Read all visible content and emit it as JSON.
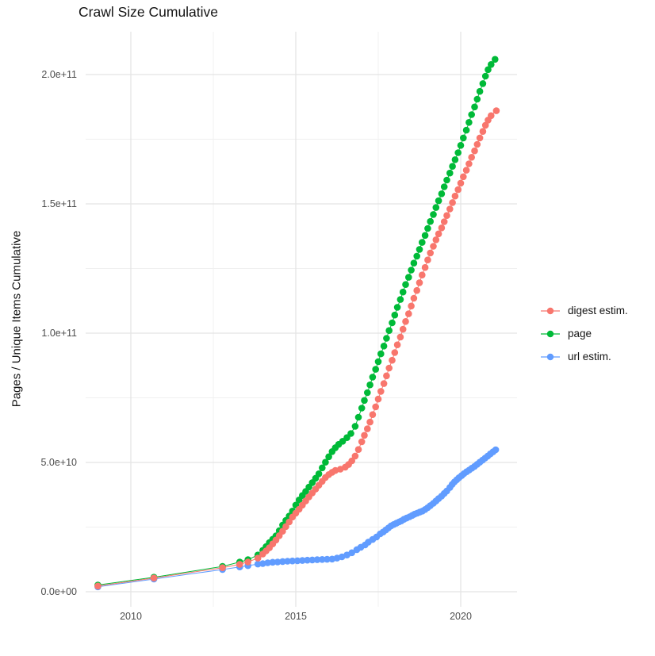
{
  "title": "Crawl Size Cumulative",
  "y_axis": {
    "label": "Pages / Unique Items Cumulative",
    "ticks": [
      {
        "label": "0.0e+00",
        "value_e9": 0
      },
      {
        "label": "5.0e+10",
        "value_e9": 50
      },
      {
        "label": "1.0e+11",
        "value_e9": 100
      },
      {
        "label": "1.5e+11",
        "value_e9": 150
      },
      {
        "label": "2.0e+11",
        "value_e9": 200
      }
    ],
    "minor_e9": [
      25,
      75,
      125,
      175
    ]
  },
  "x_axis": {
    "ticks": [
      {
        "label": "2010",
        "year": 2010
      },
      {
        "label": "2015",
        "year": 2015
      },
      {
        "label": "2020",
        "year": 2020
      }
    ],
    "minor_years": [
      2012.5,
      2017.5
    ]
  },
  "legend": [
    {
      "label": "digest estim.",
      "color": "#F8766D"
    },
    {
      "label": "page",
      "color": "#00BA38"
    },
    {
      "label": "url estim.",
      "color": "#619CFF"
    }
  ],
  "colors": {
    "major_grid": "#E4E4E4",
    "minor_grid": "#F0F0F0",
    "axis_text": "#4d4d4d"
  },
  "chart_data": {
    "type": "line",
    "title": "Crawl Size Cumulative",
    "xlabel": "",
    "ylabel": "Pages / Unique Items Cumulative",
    "x_unit": "year (decimal)",
    "y_unit": "billions of pages / unique items (1e9)",
    "xlim": [
      2008.6,
      2021.7
    ],
    "ylim_e9": [
      -12,
      216
    ],
    "grid": true,
    "legend_position": "right",
    "marker": "point",
    "series": [
      {
        "name": "digest estim.",
        "color": "#F8766D",
        "points": [
          [
            2009.0,
            2.2
          ],
          [
            2010.7,
            5.3
          ],
          [
            2012.78,
            9.3
          ],
          [
            2013.3,
            10.6
          ],
          [
            2013.55,
            11.5
          ],
          [
            2013.85,
            13
          ],
          [
            2014.0,
            14.6
          ],
          [
            2014.1,
            15.8
          ],
          [
            2014.2,
            17
          ],
          [
            2014.3,
            18.5
          ],
          [
            2014.4,
            20
          ],
          [
            2014.5,
            21.7
          ],
          [
            2014.6,
            23.4
          ],
          [
            2014.7,
            25.2
          ],
          [
            2014.8,
            27
          ],
          [
            2014.9,
            28.9
          ],
          [
            2015.0,
            30.4
          ],
          [
            2015.1,
            31.9
          ],
          [
            2015.2,
            33.5
          ],
          [
            2015.3,
            35.1
          ],
          [
            2015.4,
            36.7
          ],
          [
            2015.5,
            38.2
          ],
          [
            2015.6,
            39.7
          ],
          [
            2015.7,
            41.2
          ],
          [
            2015.8,
            42.7
          ],
          [
            2015.9,
            44.2
          ],
          [
            2016.0,
            45.3
          ],
          [
            2016.1,
            46.2
          ],
          [
            2016.2,
            46.9
          ],
          [
            2016.35,
            47.4
          ],
          [
            2016.5,
            48.2
          ],
          [
            2016.6,
            49.2
          ],
          [
            2016.7,
            50.6
          ],
          [
            2016.8,
            52.5
          ],
          [
            2016.9,
            55
          ],
          [
            2017.0,
            58
          ],
          [
            2017.08,
            60.5
          ],
          [
            2017.17,
            63
          ],
          [
            2017.25,
            65.6
          ],
          [
            2017.33,
            68.5
          ],
          [
            2017.42,
            71.5
          ],
          [
            2017.5,
            74.5
          ],
          [
            2017.58,
            77.5
          ],
          [
            2017.67,
            80.5
          ],
          [
            2017.75,
            83.5
          ],
          [
            2017.83,
            86.5
          ],
          [
            2017.92,
            89.5
          ],
          [
            2018.0,
            92.5
          ],
          [
            2018.08,
            95.5
          ],
          [
            2018.17,
            98.5
          ],
          [
            2018.25,
            101.5
          ],
          [
            2018.33,
            104.5
          ],
          [
            2018.42,
            107.5
          ],
          [
            2018.5,
            110.5
          ],
          [
            2018.58,
            113.5
          ],
          [
            2018.67,
            116.5
          ],
          [
            2018.75,
            119.5
          ],
          [
            2018.83,
            122.5
          ],
          [
            2018.92,
            125.4
          ],
          [
            2019.0,
            128.3
          ],
          [
            2019.08,
            131
          ],
          [
            2019.17,
            133.6
          ],
          [
            2019.25,
            136.1
          ],
          [
            2019.33,
            138.4
          ],
          [
            2019.42,
            140.7
          ],
          [
            2019.5,
            143.1
          ],
          [
            2019.58,
            145.5
          ],
          [
            2019.67,
            148
          ],
          [
            2019.75,
            150.5
          ],
          [
            2019.83,
            153
          ],
          [
            2019.92,
            155.5
          ],
          [
            2020.0,
            158
          ],
          [
            2020.08,
            160.5
          ],
          [
            2020.17,
            163
          ],
          [
            2020.25,
            165.5
          ],
          [
            2020.33,
            168
          ],
          [
            2020.42,
            170.5
          ],
          [
            2020.5,
            173
          ],
          [
            2020.58,
            175.5
          ],
          [
            2020.67,
            178
          ],
          [
            2020.75,
            180.4
          ],
          [
            2020.83,
            182.4
          ],
          [
            2020.92,
            184.1
          ],
          [
            2021.08,
            186
          ]
        ]
      },
      {
        "name": "page",
        "color": "#00BA38",
        "points": [
          [
            2009.0,
            2.6
          ],
          [
            2010.7,
            5.6
          ],
          [
            2012.78,
            9.8
          ],
          [
            2013.3,
            11.5
          ],
          [
            2013.55,
            12.4
          ],
          [
            2013.85,
            14.2
          ],
          [
            2014.0,
            16
          ],
          [
            2014.1,
            17.5
          ],
          [
            2014.2,
            19
          ],
          [
            2014.3,
            20.3
          ],
          [
            2014.4,
            21.6
          ],
          [
            2014.5,
            23.6
          ],
          [
            2014.6,
            25.8
          ],
          [
            2014.7,
            27.6
          ],
          [
            2014.8,
            29.3
          ],
          [
            2014.9,
            31.2
          ],
          [
            2015.0,
            33.5
          ],
          [
            2015.1,
            35.5
          ],
          [
            2015.2,
            37.2
          ],
          [
            2015.3,
            38.8
          ],
          [
            2015.4,
            40.5
          ],
          [
            2015.5,
            42.2
          ],
          [
            2015.6,
            43.9
          ],
          [
            2015.7,
            45.6
          ],
          [
            2015.8,
            47.9
          ],
          [
            2015.9,
            50.1
          ],
          [
            2016.0,
            52.2
          ],
          [
            2016.1,
            54.2
          ],
          [
            2016.2,
            55.7
          ],
          [
            2016.3,
            57
          ],
          [
            2016.42,
            58.2
          ],
          [
            2016.55,
            59.6
          ],
          [
            2016.67,
            61.2
          ],
          [
            2016.8,
            64
          ],
          [
            2016.9,
            67.5
          ],
          [
            2017.0,
            71
          ],
          [
            2017.08,
            74
          ],
          [
            2017.17,
            77
          ],
          [
            2017.25,
            80
          ],
          [
            2017.33,
            83
          ],
          [
            2017.42,
            86
          ],
          [
            2017.5,
            89
          ],
          [
            2017.58,
            92
          ],
          [
            2017.67,
            95
          ],
          [
            2017.75,
            98
          ],
          [
            2017.83,
            101
          ],
          [
            2017.92,
            104
          ],
          [
            2018.0,
            107
          ],
          [
            2018.08,
            110
          ],
          [
            2018.17,
            113
          ],
          [
            2018.25,
            115.9
          ],
          [
            2018.33,
            118.8
          ],
          [
            2018.42,
            121.6
          ],
          [
            2018.5,
            124.4
          ],
          [
            2018.58,
            127.1
          ],
          [
            2018.67,
            129.8
          ],
          [
            2018.75,
            132.4
          ],
          [
            2018.83,
            135.1
          ],
          [
            2018.92,
            137.8
          ],
          [
            2019.0,
            140.5
          ],
          [
            2019.08,
            143.2
          ],
          [
            2019.17,
            145.9
          ],
          [
            2019.25,
            148.6
          ],
          [
            2019.33,
            151.2
          ],
          [
            2019.42,
            153.9
          ],
          [
            2019.5,
            156.6
          ],
          [
            2019.58,
            159.2
          ],
          [
            2019.67,
            161.9
          ],
          [
            2019.75,
            164.5
          ],
          [
            2019.83,
            167.1
          ],
          [
            2019.92,
            169.8
          ],
          [
            2020.0,
            172.6
          ],
          [
            2020.08,
            175.5
          ],
          [
            2020.17,
            178.5
          ],
          [
            2020.25,
            181.5
          ],
          [
            2020.33,
            184.5
          ],
          [
            2020.42,
            187.5
          ],
          [
            2020.5,
            190.5
          ],
          [
            2020.58,
            193.5
          ],
          [
            2020.67,
            196.5
          ],
          [
            2020.75,
            199.4
          ],
          [
            2020.83,
            201.9
          ],
          [
            2020.92,
            203.9
          ],
          [
            2021.04,
            205.9
          ]
        ]
      },
      {
        "name": "url estim.",
        "color": "#619CFF",
        "points": [
          [
            2009.0,
            1.9
          ],
          [
            2010.7,
            4.9
          ],
          [
            2012.78,
            8.6
          ],
          [
            2013.3,
            9.6
          ],
          [
            2013.55,
            10.1
          ],
          [
            2013.85,
            10.7
          ],
          [
            2014.0,
            10.9
          ],
          [
            2014.15,
            11.2
          ],
          [
            2014.3,
            11.4
          ],
          [
            2014.45,
            11.5
          ],
          [
            2014.6,
            11.7
          ],
          [
            2014.75,
            11.8
          ],
          [
            2014.9,
            11.9
          ],
          [
            2015.05,
            12
          ],
          [
            2015.2,
            12.1
          ],
          [
            2015.35,
            12.2
          ],
          [
            2015.5,
            12.3
          ],
          [
            2015.65,
            12.4
          ],
          [
            2015.8,
            12.5
          ],
          [
            2015.95,
            12.55
          ],
          [
            2016.1,
            12.65
          ],
          [
            2016.25,
            13
          ],
          [
            2016.4,
            13.5
          ],
          [
            2016.55,
            14.2
          ],
          [
            2016.7,
            15.1
          ],
          [
            2016.85,
            16.3
          ],
          [
            2016.97,
            17.2
          ],
          [
            2017.1,
            18.1
          ],
          [
            2017.2,
            19.2
          ],
          [
            2017.33,
            20.2
          ],
          [
            2017.45,
            21.2
          ],
          [
            2017.56,
            22.4
          ],
          [
            2017.65,
            23.1
          ],
          [
            2017.73,
            23.9
          ],
          [
            2017.81,
            24.7
          ],
          [
            2017.89,
            25.5
          ],
          [
            2017.97,
            26
          ],
          [
            2018.05,
            26.5
          ],
          [
            2018.13,
            27
          ],
          [
            2018.2,
            27.4
          ],
          [
            2018.28,
            28
          ],
          [
            2018.36,
            28.5
          ],
          [
            2018.45,
            29
          ],
          [
            2018.53,
            29.5
          ],
          [
            2018.6,
            30
          ],
          [
            2018.68,
            30.4
          ],
          [
            2018.76,
            30.8
          ],
          [
            2018.84,
            31.2
          ],
          [
            2018.92,
            31.8
          ],
          [
            2019.0,
            32.5
          ],
          [
            2019.08,
            33.3
          ],
          [
            2019.17,
            34.2
          ],
          [
            2019.25,
            35.1
          ],
          [
            2019.33,
            36
          ],
          [
            2019.42,
            37
          ],
          [
            2019.5,
            38
          ],
          [
            2019.58,
            39
          ],
          [
            2019.67,
            40.3
          ],
          [
            2019.74,
            41.5
          ],
          [
            2019.81,
            42.5
          ],
          [
            2019.88,
            43.3
          ],
          [
            2019.95,
            44.1
          ],
          [
            2020.03,
            44.9
          ],
          [
            2020.1,
            45.7
          ],
          [
            2020.18,
            46.4
          ],
          [
            2020.26,
            47.1
          ],
          [
            2020.34,
            47.8
          ],
          [
            2020.42,
            48.5
          ],
          [
            2020.5,
            49.3
          ],
          [
            2020.58,
            50.1
          ],
          [
            2020.66,
            50.9
          ],
          [
            2020.74,
            51.7
          ],
          [
            2020.82,
            52.5
          ],
          [
            2020.9,
            53.3
          ],
          [
            2020.98,
            54.1
          ],
          [
            2021.06,
            54.9
          ]
        ]
      }
    ]
  }
}
